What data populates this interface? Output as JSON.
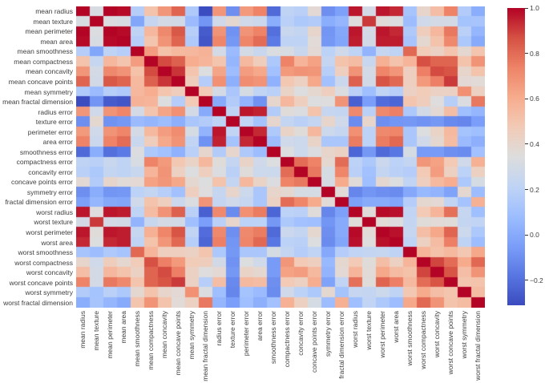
{
  "figure": {
    "background": "#ffffff",
    "label_color": "#3d3d3d",
    "tick_color": "#333333"
  },
  "chart_data": {
    "type": "heatmap",
    "title": "",
    "xlabel": "",
    "ylabel": "",
    "grid": false,
    "legend": false,
    "features": [
      "mean radius",
      "mean texture",
      "mean perimeter",
      "mean area",
      "mean smoothness",
      "mean compactness",
      "mean concavity",
      "mean concave points",
      "mean symmetry",
      "mean fractal dimension",
      "radius error",
      "texture error",
      "perimeter error",
      "area error",
      "smoothness error",
      "compactness error",
      "concavity error",
      "concave points error",
      "symmetry error",
      "fractal dimension error",
      "worst radius",
      "worst texture",
      "worst perimeter",
      "worst area",
      "worst smoothness",
      "worst compactness",
      "worst concavity",
      "worst concave points",
      "worst symmetry",
      "worst fractal dimension"
    ],
    "vmin": -0.31,
    "vmax": 1.0,
    "matrix": [
      [
        1.0,
        0.32,
        1.0,
        0.99,
        0.17,
        0.51,
        0.68,
        0.82,
        0.15,
        -0.31,
        0.68,
        -0.1,
        0.67,
        0.74,
        -0.22,
        0.21,
        0.19,
        0.38,
        -0.1,
        -0.04,
        0.97,
        0.3,
        0.97,
        0.94,
        0.12,
        0.41,
        0.53,
        0.74,
        0.16,
        0.01
      ],
      [
        0.32,
        1.0,
        0.33,
        0.32,
        -0.02,
        0.24,
        0.3,
        0.29,
        0.07,
        -0.08,
        0.28,
        0.39,
        0.28,
        0.26,
        0.01,
        0.19,
        0.14,
        0.16,
        0.01,
        0.05,
        0.35,
        0.91,
        0.36,
        0.34,
        0.08,
        0.28,
        0.3,
        0.3,
        0.11,
        0.12
      ],
      [
        1.0,
        0.33,
        1.0,
        0.99,
        0.21,
        0.56,
        0.72,
        0.85,
        0.18,
        -0.26,
        0.69,
        -0.09,
        0.69,
        0.74,
        -0.2,
        0.25,
        0.23,
        0.41,
        -0.08,
        -0.01,
        0.97,
        0.3,
        0.97,
        0.94,
        0.15,
        0.46,
        0.56,
        0.77,
        0.19,
        0.05
      ],
      [
        0.99,
        0.32,
        0.99,
        1.0,
        0.18,
        0.5,
        0.69,
        0.82,
        0.15,
        -0.28,
        0.73,
        -0.07,
        0.73,
        0.8,
        -0.17,
        0.21,
        0.21,
        0.37,
        -0.07,
        -0.02,
        0.96,
        0.29,
        0.96,
        0.96,
        0.12,
        0.39,
        0.51,
        0.72,
        0.14,
        0.0
      ],
      [
        0.17,
        -0.02,
        0.21,
        0.18,
        1.0,
        0.66,
        0.52,
        0.55,
        0.56,
        0.58,
        0.3,
        0.07,
        0.3,
        0.25,
        0.33,
        0.32,
        0.25,
        0.38,
        0.2,
        0.28,
        0.21,
        0.04,
        0.24,
        0.21,
        0.81,
        0.47,
        0.43,
        0.5,
        0.39,
        0.5
      ],
      [
        0.51,
        0.24,
        0.56,
        0.5,
        0.66,
        1.0,
        0.88,
        0.83,
        0.6,
        0.57,
        0.5,
        0.05,
        0.55,
        0.46,
        0.14,
        0.74,
        0.57,
        0.64,
        0.23,
        0.51,
        0.54,
        0.25,
        0.59,
        0.51,
        0.57,
        0.87,
        0.82,
        0.82,
        0.51,
        0.69
      ],
      [
        0.68,
        0.3,
        0.72,
        0.69,
        0.52,
        0.88,
        1.0,
        0.92,
        0.5,
        0.34,
        0.63,
        0.08,
        0.66,
        0.62,
        0.1,
        0.67,
        0.69,
        0.68,
        0.18,
        0.45,
        0.69,
        0.3,
        0.73,
        0.68,
        0.45,
        0.75,
        0.88,
        0.86,
        0.41,
        0.51
      ],
      [
        0.82,
        0.29,
        0.85,
        0.82,
        0.55,
        0.83,
        0.92,
        1.0,
        0.46,
        0.17,
        0.7,
        0.02,
        0.71,
        0.69,
        0.03,
        0.49,
        0.44,
        0.62,
        0.1,
        0.26,
        0.83,
        0.29,
        0.86,
        0.81,
        0.45,
        0.67,
        0.75,
        0.91,
        0.38,
        0.37
      ],
      [
        0.15,
        0.07,
        0.18,
        0.15,
        0.56,
        0.6,
        0.5,
        0.46,
        1.0,
        0.48,
        0.3,
        0.13,
        0.31,
        0.22,
        0.19,
        0.42,
        0.34,
        0.39,
        0.45,
        0.33,
        0.19,
        0.09,
        0.22,
        0.18,
        0.43,
        0.47,
        0.43,
        0.43,
        0.7,
        0.44
      ],
      [
        -0.31,
        -0.08,
        -0.26,
        -0.28,
        0.58,
        0.57,
        0.34,
        0.17,
        0.48,
        1.0,
        0.0,
        0.16,
        0.04,
        -0.09,
        0.4,
        0.56,
        0.45,
        0.34,
        0.35,
        0.69,
        -0.25,
        -0.05,
        -0.21,
        -0.23,
        0.5,
        0.46,
        0.35,
        0.18,
        0.33,
        0.77
      ],
      [
        0.68,
        0.28,
        0.69,
        0.73,
        0.3,
        0.5,
        0.63,
        0.7,
        0.3,
        0.0,
        1.0,
        0.21,
        0.97,
        0.95,
        0.16,
        0.36,
        0.33,
        0.51,
        0.24,
        0.23,
        0.72,
        0.19,
        0.72,
        0.75,
        0.14,
        0.29,
        0.38,
        0.53,
        0.09,
        0.05
      ],
      [
        -0.1,
        0.39,
        -0.09,
        -0.07,
        0.07,
        0.05,
        0.08,
        0.02,
        0.13,
        0.16,
        0.21,
        1.0,
        0.22,
        0.11,
        0.4,
        0.23,
        0.19,
        0.23,
        0.41,
        0.28,
        -0.11,
        0.41,
        -0.1,
        -0.08,
        -0.07,
        -0.09,
        -0.07,
        -0.12,
        -0.13,
        -0.05
      ],
      [
        0.67,
        0.28,
        0.69,
        0.73,
        0.3,
        0.55,
        0.66,
        0.71,
        0.31,
        0.04,
        0.97,
        0.22,
        1.0,
        0.94,
        0.15,
        0.42,
        0.36,
        0.56,
        0.27,
        0.24,
        0.7,
        0.2,
        0.72,
        0.73,
        0.13,
        0.34,
        0.42,
        0.55,
        0.11,
        0.09
      ],
      [
        0.74,
        0.26,
        0.74,
        0.8,
        0.25,
        0.46,
        0.62,
        0.69,
        0.22,
        -0.09,
        0.95,
        0.11,
        0.94,
        1.0,
        0.08,
        0.28,
        0.27,
        0.42,
        0.13,
        0.13,
        0.76,
        0.2,
        0.76,
        0.81,
        0.13,
        0.28,
        0.39,
        0.54,
        0.07,
        0.02
      ],
      [
        -0.22,
        0.01,
        -0.2,
        -0.17,
        0.33,
        0.14,
        0.1,
        0.03,
        0.19,
        0.4,
        0.16,
        0.4,
        0.15,
        0.08,
        1.0,
        0.34,
        0.27,
        0.33,
        0.41,
        0.43,
        -0.23,
        -0.07,
        -0.22,
        -0.18,
        0.31,
        -0.06,
        -0.06,
        -0.1,
        -0.11,
        0.1
      ],
      [
        0.21,
        0.19,
        0.25,
        0.21,
        0.32,
        0.74,
        0.67,
        0.49,
        0.42,
        0.56,
        0.36,
        0.23,
        0.42,
        0.28,
        0.34,
        1.0,
        0.8,
        0.74,
        0.39,
        0.8,
        0.2,
        0.14,
        0.26,
        0.2,
        0.23,
        0.68,
        0.64,
        0.48,
        0.28,
        0.59
      ],
      [
        0.19,
        0.14,
        0.23,
        0.21,
        0.25,
        0.57,
        0.69,
        0.44,
        0.34,
        0.45,
        0.33,
        0.19,
        0.36,
        0.27,
        0.27,
        0.8,
        1.0,
        0.77,
        0.31,
        0.73,
        0.19,
        0.1,
        0.23,
        0.19,
        0.17,
        0.48,
        0.66,
        0.44,
        0.2,
        0.44
      ],
      [
        0.38,
        0.16,
        0.41,
        0.37,
        0.38,
        0.64,
        0.68,
        0.62,
        0.39,
        0.34,
        0.51,
        0.23,
        0.56,
        0.42,
        0.33,
        0.74,
        0.77,
        1.0,
        0.31,
        0.61,
        0.36,
        0.09,
        0.39,
        0.34,
        0.22,
        0.45,
        0.55,
        0.6,
        0.14,
        0.31
      ],
      [
        -0.1,
        0.01,
        -0.08,
        -0.07,
        0.2,
        0.23,
        0.18,
        0.1,
        0.45,
        0.35,
        0.24,
        0.41,
        0.27,
        0.13,
        0.41,
        0.39,
        0.31,
        0.31,
        1.0,
        0.37,
        -0.13,
        -0.08,
        -0.1,
        -0.11,
        -0.01,
        0.06,
        0.04,
        -0.03,
        0.39,
        0.08
      ],
      [
        -0.04,
        0.05,
        -0.01,
        -0.02,
        0.28,
        0.51,
        0.45,
        0.26,
        0.33,
        0.69,
        0.23,
        0.28,
        0.24,
        0.13,
        0.43,
        0.8,
        0.73,
        0.61,
        0.37,
        1.0,
        -0.04,
        0.0,
        0.0,
        -0.02,
        0.17,
        0.39,
        0.38,
        0.22,
        0.11,
        0.59
      ],
      [
        0.97,
        0.35,
        0.97,
        0.96,
        0.21,
        0.54,
        0.69,
        0.83,
        0.19,
        -0.25,
        0.72,
        -0.11,
        0.7,
        0.76,
        -0.23,
        0.2,
        0.19,
        0.36,
        -0.13,
        -0.04,
        1.0,
        0.36,
        0.99,
        0.98,
        0.22,
        0.48,
        0.57,
        0.79,
        0.24,
        0.09
      ],
      [
        0.3,
        0.91,
        0.3,
        0.29,
        0.04,
        0.25,
        0.3,
        0.29,
        0.09,
        -0.05,
        0.19,
        0.41,
        0.2,
        0.2,
        -0.07,
        0.14,
        0.1,
        0.09,
        -0.08,
        0.0,
        0.36,
        1.0,
        0.37,
        0.35,
        0.23,
        0.36,
        0.37,
        0.36,
        0.23,
        0.22
      ],
      [
        0.97,
        0.36,
        0.97,
        0.96,
        0.24,
        0.59,
        0.73,
        0.86,
        0.22,
        -0.21,
        0.72,
        -0.1,
        0.72,
        0.76,
        -0.22,
        0.26,
        0.23,
        0.39,
        -0.1,
        0.0,
        0.99,
        0.37,
        1.0,
        0.98,
        0.24,
        0.53,
        0.62,
        0.82,
        0.27,
        0.14
      ],
      [
        0.94,
        0.34,
        0.94,
        0.96,
        0.21,
        0.51,
        0.68,
        0.81,
        0.18,
        -0.23,
        0.75,
        -0.08,
        0.73,
        0.81,
        -0.18,
        0.2,
        0.19,
        0.34,
        -0.11,
        -0.02,
        0.98,
        0.35,
        0.98,
        1.0,
        0.21,
        0.44,
        0.54,
        0.75,
        0.21,
        0.08
      ],
      [
        0.12,
        0.08,
        0.15,
        0.12,
        0.81,
        0.57,
        0.45,
        0.45,
        0.43,
        0.5,
        0.14,
        -0.07,
        0.13,
        0.13,
        0.31,
        0.23,
        0.17,
        0.22,
        -0.01,
        0.17,
        0.22,
        0.23,
        0.24,
        0.21,
        1.0,
        0.57,
        0.52,
        0.55,
        0.49,
        0.62
      ],
      [
        0.41,
        0.28,
        0.46,
        0.39,
        0.47,
        0.87,
        0.75,
        0.67,
        0.47,
        0.46,
        0.29,
        -0.09,
        0.34,
        0.28,
        -0.06,
        0.68,
        0.48,
        0.45,
        0.06,
        0.39,
        0.48,
        0.36,
        0.53,
        0.44,
        0.57,
        1.0,
        0.89,
        0.8,
        0.61,
        0.81
      ],
      [
        0.53,
        0.3,
        0.56,
        0.51,
        0.43,
        0.82,
        0.88,
        0.75,
        0.43,
        0.35,
        0.38,
        -0.07,
        0.42,
        0.39,
        -0.06,
        0.64,
        0.66,
        0.55,
        0.04,
        0.38,
        0.57,
        0.37,
        0.62,
        0.54,
        0.52,
        0.89,
        1.0,
        0.86,
        0.53,
        0.69
      ],
      [
        0.74,
        0.3,
        0.77,
        0.72,
        0.5,
        0.82,
        0.86,
        0.91,
        0.43,
        0.18,
        0.53,
        -0.12,
        0.55,
        0.54,
        -0.1,
        0.48,
        0.44,
        0.6,
        -0.03,
        0.22,
        0.79,
        0.36,
        0.82,
        0.75,
        0.55,
        0.8,
        0.86,
        1.0,
        0.5,
        0.51
      ],
      [
        0.16,
        0.11,
        0.19,
        0.14,
        0.39,
        0.51,
        0.41,
        0.38,
        0.7,
        0.33,
        0.09,
        -0.13,
        0.11,
        0.07,
        -0.11,
        0.28,
        0.2,
        0.14,
        0.39,
        0.11,
        0.24,
        0.23,
        0.27,
        0.21,
        0.49,
        0.61,
        0.53,
        0.5,
        1.0,
        0.54
      ],
      [
        0.01,
        0.12,
        0.05,
        0.0,
        0.5,
        0.69,
        0.51,
        0.37,
        0.44,
        0.77,
        0.05,
        -0.05,
        0.09,
        0.02,
        0.1,
        0.59,
        0.44,
        0.31,
        0.08,
        0.59,
        0.09,
        0.22,
        0.14,
        0.08,
        0.62,
        0.81,
        0.69,
        0.51,
        0.54,
        1.0
      ]
    ],
    "colormap": {
      "name": "coolwarm",
      "stops": [
        {
          "t": 0.0,
          "c": "#3B4CC0"
        },
        {
          "t": 0.1,
          "c": "#5977E3"
        },
        {
          "t": 0.2,
          "c": "#7B9FF9"
        },
        {
          "t": 0.3,
          "c": "#9EBEFF"
        },
        {
          "t": 0.4,
          "c": "#C0D4F5"
        },
        {
          "t": 0.5,
          "c": "#DDDDDD"
        },
        {
          "t": 0.6,
          "c": "#F2CBB7"
        },
        {
          "t": 0.7,
          "c": "#F7AC8E"
        },
        {
          "t": 0.8,
          "c": "#EE8468"
        },
        {
          "t": 0.9,
          "c": "#D65244"
        },
        {
          "t": 1.0,
          "c": "#B40426"
        }
      ]
    },
    "colorbar": {
      "position": "right",
      "ticks": [
        1.0,
        0.8,
        0.6,
        0.4,
        0.2,
        0.0,
        -0.2
      ],
      "tick_labels": [
        "1.0",
        "0.8",
        "0.6",
        "0.4",
        "0.2",
        "0.0",
        "−0.2"
      ]
    },
    "x_tick_rotation": 90
  }
}
